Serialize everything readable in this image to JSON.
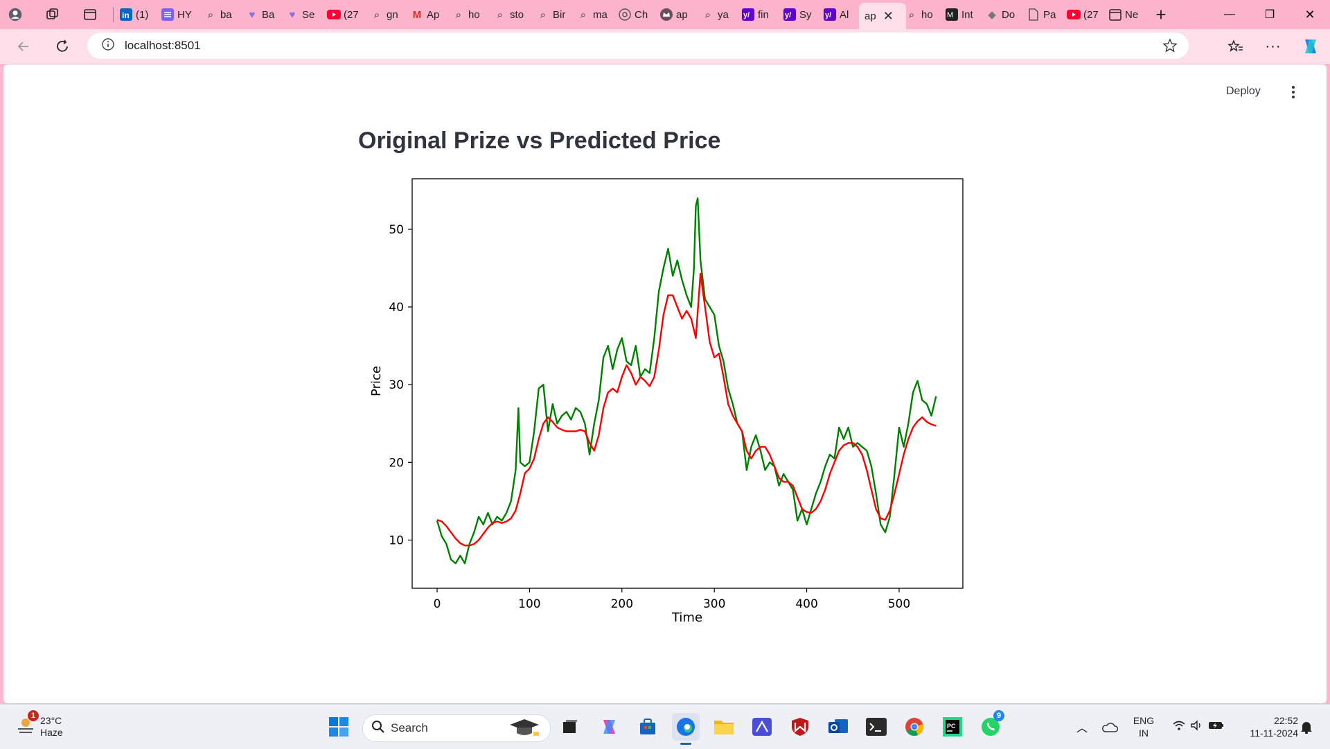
{
  "browser": {
    "tabs": [
      {
        "label": "",
        "icon": "profile-icon"
      },
      {
        "label": "",
        "icon": "workspaces-icon"
      },
      {
        "label": "",
        "icon": "tab-actions-icon"
      },
      {
        "label": "",
        "icon": "linkedin-icon"
      },
      {
        "label": "(1)",
        "icon": "linkedin-icon"
      },
      {
        "label": "HY",
        "icon": "list-icon"
      },
      {
        "label": "ba",
        "icon": "search-icon"
      },
      {
        "label": "Ba",
        "icon": "heart-icon"
      },
      {
        "label": "Se",
        "icon": "heart-icon"
      },
      {
        "label": "(27",
        "icon": "youtube-icon"
      },
      {
        "label": "gn",
        "icon": "search-icon"
      },
      {
        "label": "Ap",
        "icon": "gmail-icon"
      },
      {
        "label": "ho",
        "icon": "search-icon"
      },
      {
        "label": "sto",
        "icon": "search-icon"
      },
      {
        "label": "Bir",
        "icon": "search-icon"
      },
      {
        "label": "ma",
        "icon": "search-icon"
      },
      {
        "label": "Ch",
        "icon": "openai-icon"
      },
      {
        "label": "ap",
        "icon": "crown-icon"
      },
      {
        "label": "ya",
        "icon": "search-icon"
      },
      {
        "label": "fin",
        "icon": "yahoo-icon"
      },
      {
        "label": "Sy",
        "icon": "yahoo-icon"
      },
      {
        "label": "Al",
        "icon": "yahoo-icon"
      },
      {
        "label": "ap",
        "icon": "page-icon"
      },
      {
        "label": "ho",
        "icon": "search-icon"
      },
      {
        "label": "Int",
        "icon": "medium-icon"
      },
      {
        "label": "Do",
        "icon": "diamond-icon"
      },
      {
        "label": "Pa",
        "icon": "document-icon"
      },
      {
        "label": "(27",
        "icon": "youtube-icon"
      },
      {
        "label": "Ne",
        "icon": "calendar-icon"
      }
    ],
    "address": "localhost:8501"
  },
  "app": {
    "deploy_label": "Deploy",
    "title": "Original Prize vs Predicted Price"
  },
  "chart_data": {
    "type": "line",
    "title": "",
    "xlabel": "Time",
    "ylabel": "Price",
    "xlim": [
      -27,
      569
    ],
    "ylim": [
      3.8,
      56.5
    ],
    "xticks": [
      0,
      100,
      200,
      300,
      400,
      500
    ],
    "yticks": [
      10,
      20,
      30,
      40,
      50
    ],
    "grid": false,
    "legend": "none",
    "series": [
      {
        "name": "",
        "color": "#008000",
        "x": [
          0,
          5,
          10,
          15,
          20,
          25,
          30,
          35,
          40,
          45,
          50,
          55,
          60,
          65,
          70,
          75,
          80,
          85,
          88,
          90,
          95,
          100,
          105,
          110,
          115,
          120,
          125,
          130,
          135,
          140,
          145,
          150,
          155,
          160,
          165,
          170,
          175,
          180,
          185,
          190,
          195,
          200,
          205,
          210,
          215,
          220,
          225,
          230,
          235,
          240,
          245,
          250,
          255,
          260,
          265,
          270,
          275,
          278,
          280,
          282,
          285,
          290,
          295,
          300,
          305,
          310,
          315,
          320,
          325,
          330,
          335,
          340,
          345,
          350,
          355,
          360,
          365,
          370,
          375,
          380,
          385,
          390,
          395,
          400,
          405,
          410,
          415,
          420,
          425,
          430,
          435,
          440,
          445,
          450,
          455,
          460,
          465,
          470,
          475,
          480,
          485,
          490,
          495,
          500,
          505,
          510,
          515,
          520,
          525,
          530,
          535,
          540
        ],
        "y": [
          12.5,
          10.5,
          9.5,
          7.5,
          7.0,
          8.0,
          7.0,
          9.5,
          11.0,
          13.0,
          12.0,
          13.5,
          12.0,
          13.0,
          12.5,
          13.5,
          15.0,
          19.0,
          27.0,
          20.0,
          19.5,
          20.0,
          24.0,
          29.5,
          30.0,
          24.0,
          27.5,
          25.0,
          26.0,
          26.5,
          25.5,
          27.0,
          26.5,
          25.0,
          21.0,
          25.0,
          28.0,
          33.5,
          35.0,
          32.0,
          34.5,
          36.0,
          33.0,
          32.5,
          35.0,
          31.0,
          32.0,
          31.5,
          36.0,
          42.0,
          45.0,
          47.5,
          44.0,
          46.0,
          43.5,
          41.5,
          40.0,
          45.0,
          53.0,
          54.0,
          46.0,
          41.0,
          40.0,
          39.0,
          35.0,
          33.0,
          29.5,
          27.5,
          25.0,
          24.0,
          19.0,
          22.0,
          23.5,
          21.5,
          19.0,
          20.0,
          19.5,
          17.0,
          18.5,
          17.5,
          16.5,
          12.5,
          14.0,
          12.0,
          14.0,
          16.0,
          17.5,
          19.5,
          21.0,
          20.5,
          24.5,
          23.0,
          24.5,
          22.0,
          22.5,
          22.0,
          21.5,
          19.5,
          16.0,
          12.0,
          11.0,
          13.0,
          18.5,
          24.5,
          22.0,
          25.0,
          29.0,
          30.5,
          28.0,
          27.5,
          26.0,
          28.5
        ]
      },
      {
        "name": "",
        "color": "#ff0000",
        "x": [
          0,
          5,
          10,
          15,
          20,
          25,
          30,
          35,
          40,
          45,
          50,
          55,
          60,
          65,
          70,
          75,
          80,
          85,
          90,
          95,
          100,
          105,
          110,
          115,
          120,
          125,
          130,
          135,
          140,
          145,
          150,
          155,
          160,
          165,
          170,
          175,
          180,
          185,
          190,
          195,
          200,
          205,
          210,
          215,
          220,
          225,
          230,
          235,
          240,
          245,
          250,
          255,
          260,
          265,
          270,
          275,
          280,
          285,
          290,
          295,
          300,
          305,
          310,
          315,
          320,
          325,
          330,
          335,
          340,
          345,
          350,
          355,
          360,
          365,
          370,
          375,
          380,
          385,
          390,
          395,
          400,
          405,
          410,
          415,
          420,
          425,
          430,
          435,
          440,
          445,
          450,
          455,
          460,
          465,
          470,
          475,
          480,
          485,
          490,
          495,
          500,
          505,
          510,
          515,
          520,
          525,
          530,
          535,
          540
        ],
        "y": [
          12.6,
          12.4,
          11.8,
          11.0,
          10.2,
          9.6,
          9.3,
          9.3,
          9.5,
          10.0,
          10.8,
          11.6,
          12.2,
          12.4,
          12.2,
          12.4,
          12.8,
          13.8,
          16.0,
          18.6,
          19.2,
          20.5,
          23.0,
          25.0,
          25.8,
          25.2,
          24.5,
          24.2,
          24.0,
          24.0,
          24.0,
          24.2,
          24.0,
          22.5,
          21.5,
          23.5,
          27.0,
          29.0,
          29.5,
          29.0,
          31.0,
          32.5,
          31.5,
          30.0,
          31.0,
          30.5,
          29.8,
          31.0,
          34.5,
          39.0,
          41.5,
          41.5,
          40.0,
          38.5,
          39.5,
          38.5,
          36.0,
          44.3,
          40.0,
          35.5,
          33.5,
          34.0,
          31.0,
          27.5,
          26.0,
          25.0,
          24.0,
          21.5,
          20.5,
          21.5,
          22.0,
          22.0,
          21.0,
          19.5,
          18.0,
          17.5,
          17.5,
          17.0,
          15.5,
          14.0,
          13.6,
          13.5,
          14.0,
          15.0,
          16.5,
          18.5,
          20.0,
          21.5,
          22.2,
          22.5,
          22.5,
          22.0,
          21.0,
          19.0,
          16.5,
          14.0,
          12.8,
          12.6,
          13.8,
          16.0,
          18.5,
          21.0,
          23.0,
          24.5,
          25.3,
          25.8,
          25.2,
          24.9,
          24.7
        ]
      }
    ]
  },
  "taskbar": {
    "weather": {
      "temp": "23°C",
      "condition": "Haze",
      "badge": "1"
    },
    "search_placeholder": "Search",
    "whatsapp_badge": "9",
    "lang_top": "ENG",
    "lang_bottom": "IN",
    "time": "22:52",
    "date": "11-11-2024"
  }
}
